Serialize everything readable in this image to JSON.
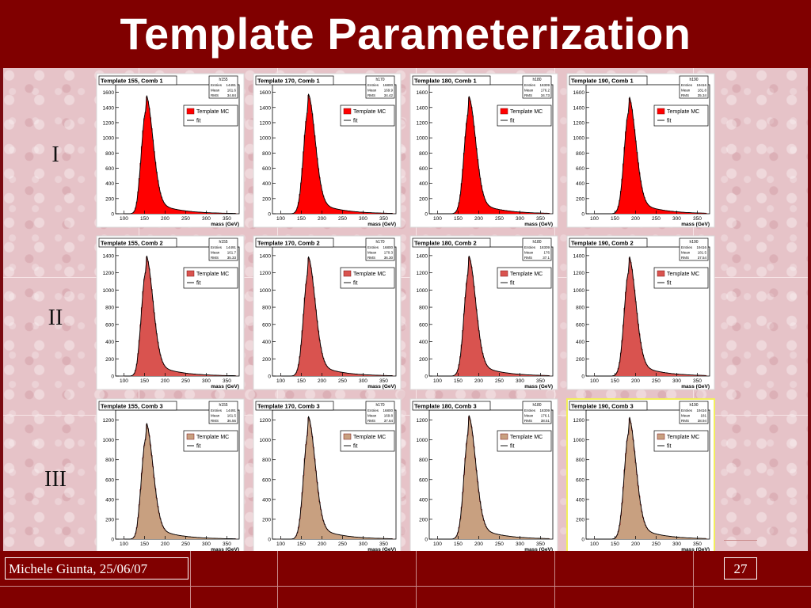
{
  "slide": {
    "title": "Template Parameterization",
    "row_labels": [
      "I",
      "II",
      "III"
    ],
    "footer_left": "Michele Giunta, 25/06/07",
    "page_number": "27"
  },
  "colors": {
    "title_bar": "#800000",
    "background": "#e6c3c8",
    "comb1_fill": "#ff0000",
    "comb2_fill": "#d9534f",
    "comb3_fill": "#c8a080",
    "highlight_border": "#f2ef5c"
  },
  "chart_data": [
    {
      "type": "histogram",
      "title": "Template 155, Comb 1",
      "stats_name": "h155",
      "stats": {
        "Entries": "14491",
        "Mean": "161.6",
        "RMS": "34.84"
      },
      "xlabel": "mass (GeV)",
      "x_ticks": [
        100,
        150,
        200,
        250,
        300,
        350
      ],
      "xlim": [
        80,
        380
      ],
      "y_ticks": [
        0,
        200,
        400,
        600,
        800,
        1000,
        1200,
        1400,
        1600
      ],
      "ylim": [
        0,
        1700
      ],
      "peak_x": 152,
      "peak_y": 1560,
      "legend": [
        "Template MC",
        "fit"
      ],
      "fill_color": "#ff0000"
    },
    {
      "type": "histogram",
      "title": "Template 170, Comb 1",
      "stats_name": "h170",
      "stats": {
        "Entries": "16800",
        "Mean": "169.9",
        "RMS": "34.42"
      },
      "xlabel": "mass (GeV)",
      "x_ticks": [
        100,
        150,
        200,
        250,
        300,
        350
      ],
      "xlim": [
        80,
        380
      ],
      "y_ticks": [
        0,
        200,
        400,
        600,
        800,
        1000,
        1200,
        1400,
        1600
      ],
      "ylim": [
        0,
        1700
      ],
      "peak_x": 165,
      "peak_y": 1570,
      "legend": [
        "Template MC",
        "fit"
      ],
      "fill_color": "#ff0000"
    },
    {
      "type": "histogram",
      "title": "Template 180, Comb 1",
      "stats_name": "h180",
      "stats": {
        "Entries": "18309",
        "Mean": "176.2",
        "RMS": "34.73"
      },
      "xlabel": "mass (GeV)",
      "x_ticks": [
        100,
        150,
        200,
        250,
        300,
        350
      ],
      "xlim": [
        80,
        380
      ],
      "y_ticks": [
        0,
        200,
        400,
        600,
        800,
        1000,
        1200,
        1400,
        1600
      ],
      "ylim": [
        0,
        1700
      ],
      "peak_x": 174,
      "peak_y": 1540,
      "legend": [
        "Template MC",
        "fit"
      ],
      "fill_color": "#ff0000"
    },
    {
      "type": "histogram",
      "title": "Template 190, Comb 1",
      "stats_name": "h190",
      "stats": {
        "Entries": "19416",
        "Mean": "181.8",
        "RMS": "35.34"
      },
      "xlabel": "mass (GeV)",
      "x_ticks": [
        100,
        150,
        200,
        250,
        300,
        350
      ],
      "xlim": [
        80,
        380
      ],
      "y_ticks": [
        0,
        200,
        400,
        600,
        800,
        1000,
        1200,
        1400,
        1600
      ],
      "ylim": [
        0,
        1700
      ],
      "peak_x": 182,
      "peak_y": 1540,
      "legend": [
        "Template MC",
        "fit"
      ],
      "fill_color": "#ff0000"
    },
    {
      "type": "histogram",
      "title": "Template 155, Comb 2",
      "stats_name": "h155",
      "stats": {
        "Entries": "14491",
        "Mean": "161.7",
        "RMS": "35.33"
      },
      "xlabel": "mass (GeV)",
      "x_ticks": [
        100,
        150,
        200,
        250,
        300,
        350
      ],
      "xlim": [
        80,
        380
      ],
      "y_ticks": [
        0,
        200,
        400,
        600,
        800,
        1000,
        1200,
        1400
      ],
      "ylim": [
        0,
        1500
      ],
      "peak_x": 152,
      "peak_y": 1400,
      "legend": [
        "Template MC",
        "fit"
      ],
      "fill_color": "#d9534f"
    },
    {
      "type": "histogram",
      "title": "Template 170, Comb 2",
      "stats_name": "h170",
      "stats": {
        "Entries": "16800",
        "Mean": "170.3",
        "RMS": "36.30"
      },
      "xlabel": "mass (GeV)",
      "x_ticks": [
        100,
        150,
        200,
        250,
        300,
        350
      ],
      "xlim": [
        80,
        380
      ],
      "y_ticks": [
        0,
        200,
        400,
        600,
        800,
        1000,
        1200,
        1400
      ],
      "ylim": [
        0,
        1500
      ],
      "peak_x": 165,
      "peak_y": 1380,
      "legend": [
        "Template MC",
        "fit"
      ],
      "fill_color": "#d9534f"
    },
    {
      "type": "histogram",
      "title": "Template 180, Comb 2",
      "stats_name": "h180",
      "stats": {
        "Entries": "18309",
        "Mean": "176",
        "RMS": "37.1"
      },
      "xlabel": "mass (GeV)",
      "x_ticks": [
        100,
        150,
        200,
        250,
        300,
        350
      ],
      "xlim": [
        80,
        380
      ],
      "y_ticks": [
        0,
        200,
        400,
        600,
        800,
        1000,
        1200,
        1400
      ],
      "ylim": [
        0,
        1500
      ],
      "peak_x": 174,
      "peak_y": 1390,
      "legend": [
        "Template MC",
        "fit"
      ],
      "fill_color": "#d9534f"
    },
    {
      "type": "histogram",
      "title": "Template 190, Comb 2",
      "stats_name": "h190",
      "stats": {
        "Entries": "19416",
        "Mean": "181.5",
        "RMS": "37.54"
      },
      "xlabel": "mass (GeV)",
      "x_ticks": [
        100,
        150,
        200,
        250,
        300,
        350
      ],
      "xlim": [
        80,
        380
      ],
      "y_ticks": [
        0,
        200,
        400,
        600,
        800,
        1000,
        1200,
        1400
      ],
      "ylim": [
        0,
        1500
      ],
      "peak_x": 182,
      "peak_y": 1390,
      "legend": [
        "Template MC",
        "fit"
      ],
      "fill_color": "#d9534f"
    },
    {
      "type": "histogram",
      "title": "Template 155, Comb 3",
      "stats_name": "h155",
      "stats": {
        "Entries": "14491",
        "Mean": "161.5",
        "RMS": "36.56"
      },
      "xlabel": "mass (GeV)",
      "x_ticks": [
        100,
        150,
        200,
        250,
        300,
        350
      ],
      "xlim": [
        80,
        380
      ],
      "y_ticks": [
        0,
        200,
        400,
        600,
        800,
        1000,
        1200
      ],
      "ylim": [
        0,
        1300
      ],
      "peak_x": 152,
      "peak_y": 1170,
      "legend": [
        "Template MC",
        "fit"
      ],
      "fill_color": "#c8a080"
    },
    {
      "type": "histogram",
      "title": "Template 170, Comb 3",
      "stats_name": "h170",
      "stats": {
        "Entries": "16800",
        "Mean": "169.8",
        "RMS": "37.64"
      },
      "xlabel": "mass (GeV)",
      "x_ticks": [
        100,
        150,
        200,
        250,
        300,
        350
      ],
      "xlim": [
        80,
        380
      ],
      "y_ticks": [
        0,
        200,
        400,
        600,
        800,
        1000,
        1200
      ],
      "ylim": [
        0,
        1300
      ],
      "peak_x": 165,
      "peak_y": 1230,
      "legend": [
        "Template MC",
        "fit"
      ],
      "fill_color": "#c8a080"
    },
    {
      "type": "histogram",
      "title": "Template 180, Comb 3",
      "stats_name": "h180",
      "stats": {
        "Entries": "18309",
        "Mean": "176.1",
        "RMS": "38.51"
      },
      "xlabel": "mass (GeV)",
      "x_ticks": [
        100,
        150,
        200,
        250,
        300,
        350
      ],
      "xlim": [
        80,
        380
      ],
      "y_ticks": [
        0,
        200,
        400,
        600,
        800,
        1000,
        1200
      ],
      "ylim": [
        0,
        1300
      ],
      "peak_x": 174,
      "peak_y": 1240,
      "legend": [
        "Template MC",
        "fit"
      ],
      "fill_color": "#c8a080"
    },
    {
      "type": "histogram",
      "title": "Template 190, Comb 3",
      "stats_name": "h190",
      "stats": {
        "Entries": "19416",
        "Mean": "181",
        "RMS": "38.94"
      },
      "xlabel": "mass (GeV)",
      "x_ticks": [
        100,
        150,
        200,
        250,
        300,
        350
      ],
      "xlim": [
        80,
        380
      ],
      "y_ticks": [
        0,
        200,
        400,
        600,
        800,
        1000,
        1200
      ],
      "ylim": [
        0,
        1300
      ],
      "peak_x": 182,
      "peak_y": 1230,
      "legend": [
        "Template MC",
        "fit"
      ],
      "fill_color": "#c8a080",
      "highlighted": true
    }
  ]
}
